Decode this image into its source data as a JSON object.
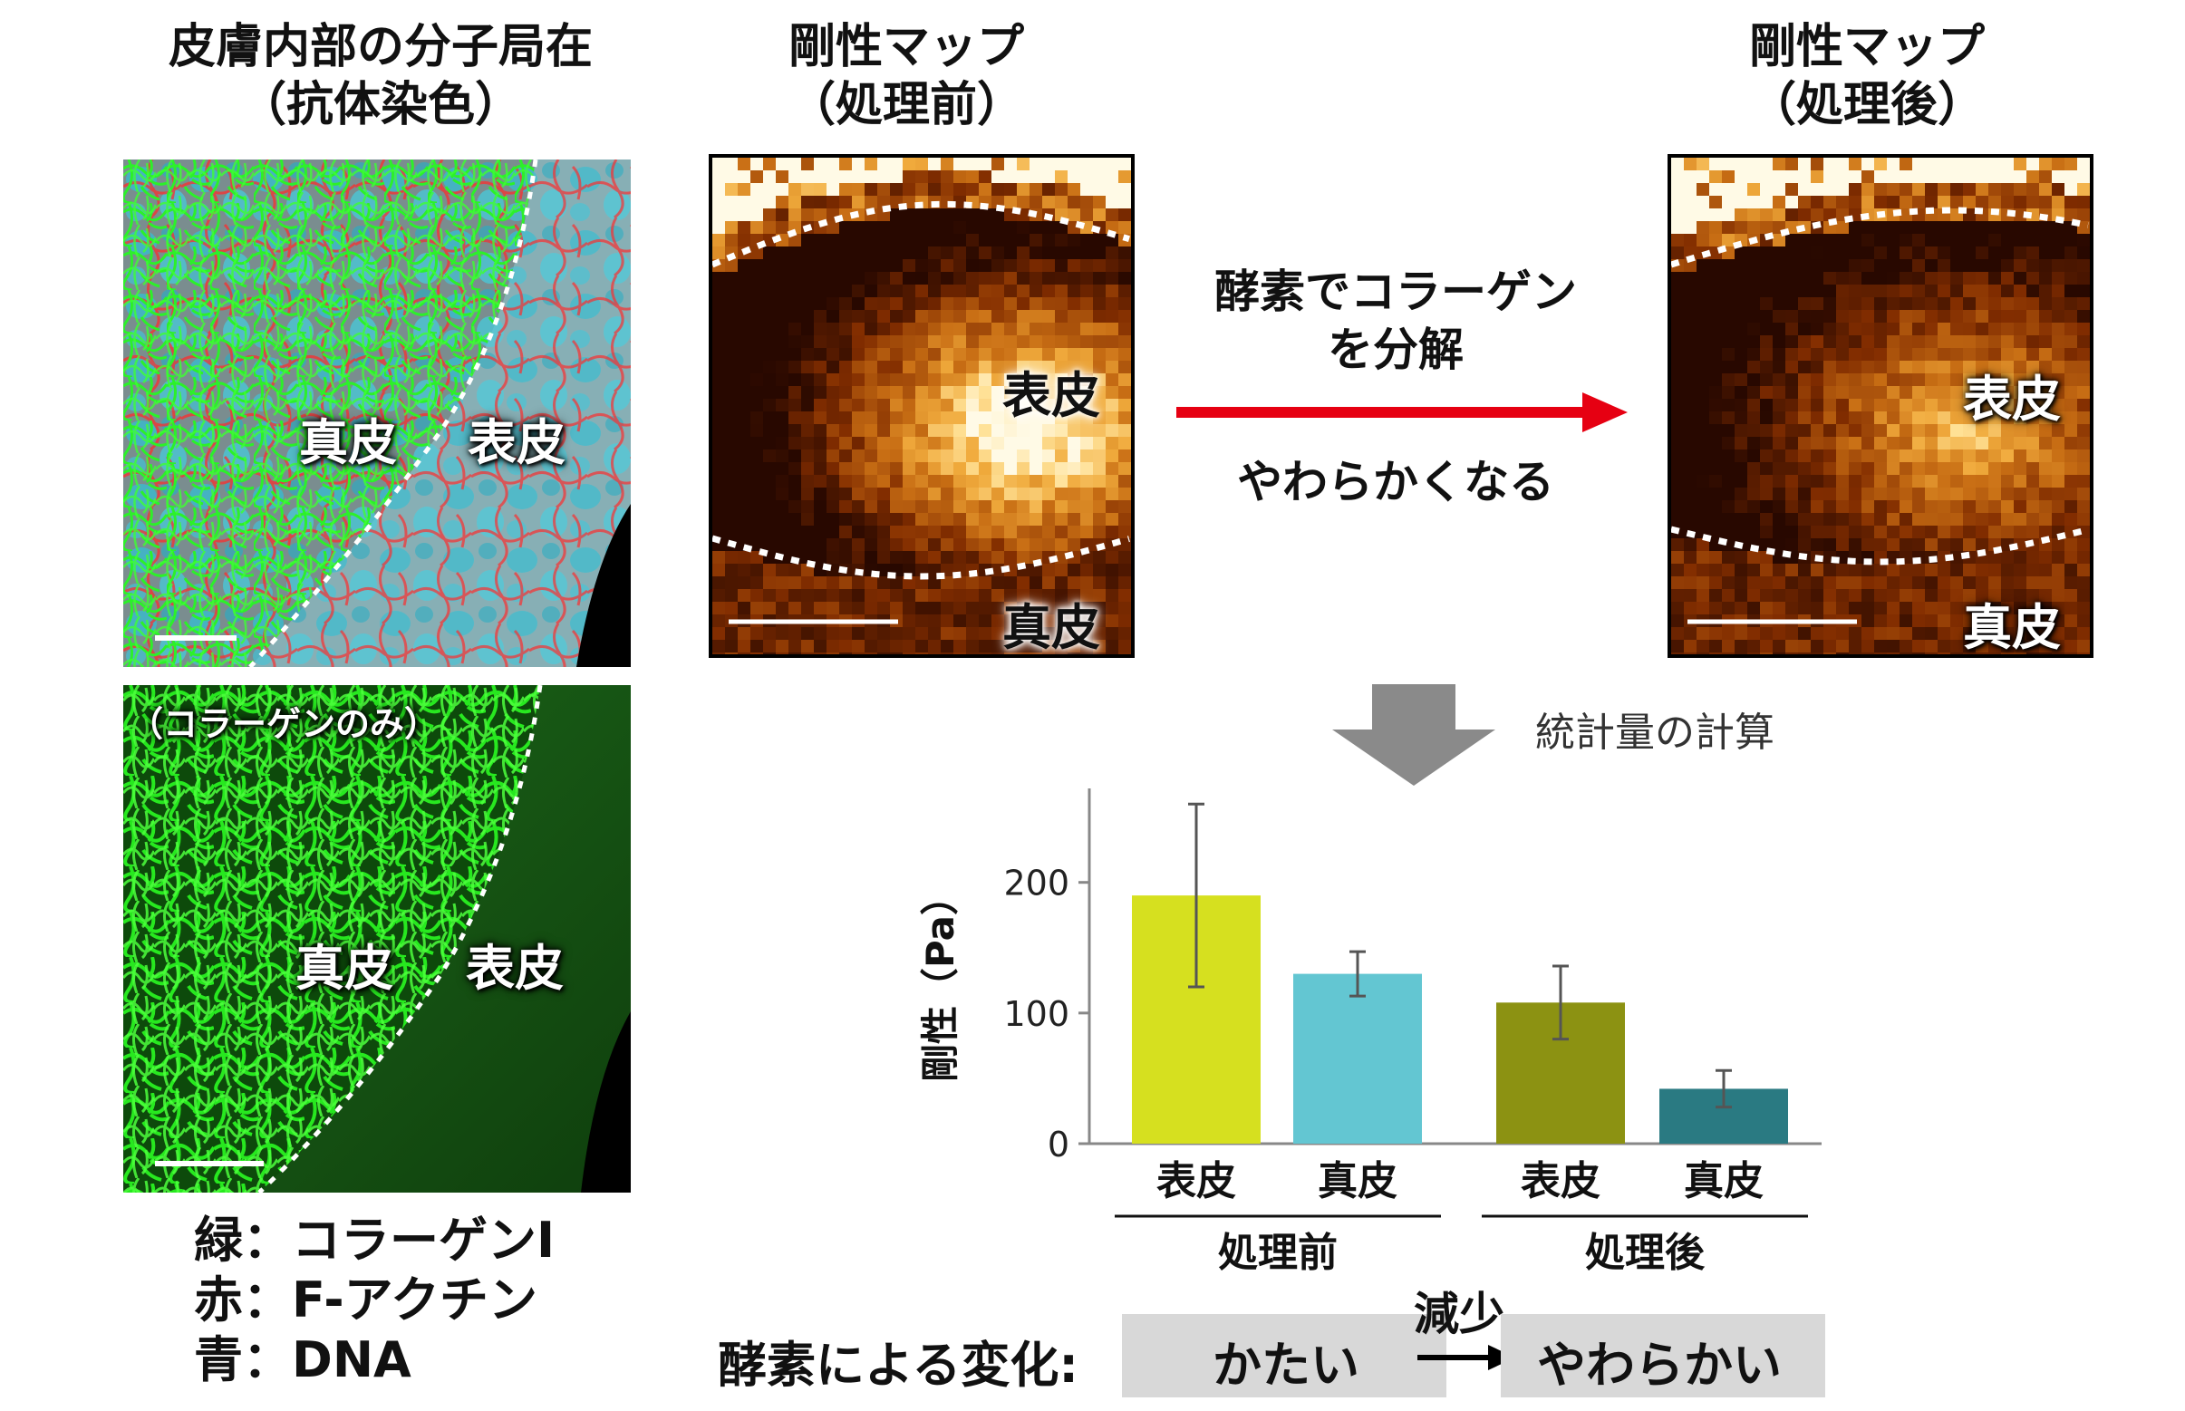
{
  "left_title": {
    "line1": "皮膚内部の分子局在",
    "line2": "（抗体染色）"
  },
  "pre_title": {
    "line1": "剛性マップ",
    "line2": "（処理前）"
  },
  "post_title": {
    "line1": "剛性マップ",
    "line2": "（処理後）"
  },
  "stain_panel": {
    "label_dermis": "真皮",
    "label_epidermis": "表皮"
  },
  "collagen_panel": {
    "caption": "（コラーゲンのみ）",
    "label_dermis": "真皮",
    "label_epidermis": "表皮"
  },
  "pre_map": {
    "label_epidermis": "表皮",
    "label_dermis": "真皮"
  },
  "post_map": {
    "label_epidermis": "表皮",
    "label_dermis": "真皮"
  },
  "process_arrow": {
    "above_line1": "酵素でコラーゲン",
    "above_line2": "を分解",
    "below": "やわらかくなる",
    "color": "#e60012"
  },
  "stats_arrow": {
    "label": "統計量の計算",
    "color": "#8a8a8a"
  },
  "legend": {
    "green": "緑：コラーゲンI",
    "red": "赤：F-アクチン",
    "blue": "青：DNA"
  },
  "chart_data": {
    "type": "bar",
    "ylabel": "剛性（Pa）",
    "yticks": [
      0,
      100,
      200
    ],
    "ylim": [
      0,
      265
    ],
    "categories": [
      "表皮",
      "真皮",
      "表皮",
      "真皮"
    ],
    "groups": [
      "処理前",
      "処理後"
    ],
    "values": [
      190,
      130,
      108,
      42
    ],
    "errors": [
      70,
      17,
      28,
      14
    ],
    "colors": [
      "#d6e01f",
      "#63c6d2",
      "#8c9212",
      "#2a7a82"
    ]
  },
  "summary": {
    "label": "酵素による変化:",
    "from": "かたい",
    "arrow_label": "減少",
    "to": "やわらかい"
  }
}
